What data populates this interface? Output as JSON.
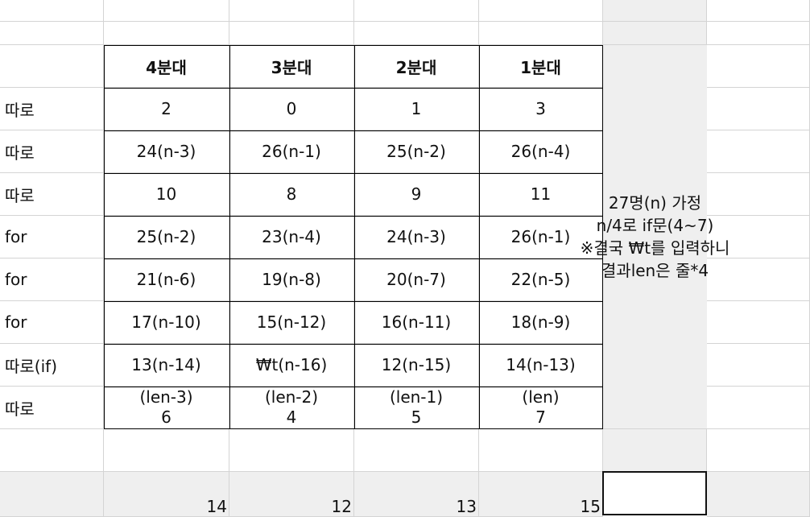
{
  "header": [
    "4분대",
    "3분대",
    "2분대",
    "1분대"
  ],
  "rows": [
    {
      "label": "따로",
      "values": [
        "2",
        "0",
        "1",
        "3"
      ]
    },
    {
      "label": "따로",
      "values": [
        "24(n-3)",
        "26(n-1)",
        "25(n-2)",
        "26(n-4)"
      ]
    },
    {
      "label": "따로",
      "values": [
        "10",
        "8",
        "9",
        "11"
      ]
    },
    {
      "label": "for",
      "values": [
        "25(n-2)",
        "23(n-4)",
        "24(n-3)",
        "26(n-1)"
      ]
    },
    {
      "label": "for",
      "values": [
        "21(n-6)",
        "19(n-8)",
        "20(n-7)",
        "22(n-5)"
      ]
    },
    {
      "label": "for",
      "values": [
        "17(n-10)",
        "15(n-12)",
        "16(n-11)",
        "18(n-9)"
      ]
    },
    {
      "label": "따로(if)",
      "values": [
        "13(n-14)",
        "₩t(n-16)",
        "12(n-15)",
        "14(n-13)"
      ]
    },
    {
      "label": "따로",
      "values": [
        {
          "top": "(len-3)",
          "bottom": "6"
        },
        {
          "top": "(len-2)",
          "bottom": "4"
        },
        {
          "top": "(len-1)",
          "bottom": "5"
        },
        {
          "top": "(len)",
          "bottom": "7"
        }
      ]
    }
  ],
  "note": [
    "27명(n) 가정",
    "n/4로 if문(4~7)",
    "※결국 ₩t를 입력하니",
    "결과len은 줄*4"
  ],
  "totals": [
    "14",
    "12",
    "13",
    "15"
  ]
}
